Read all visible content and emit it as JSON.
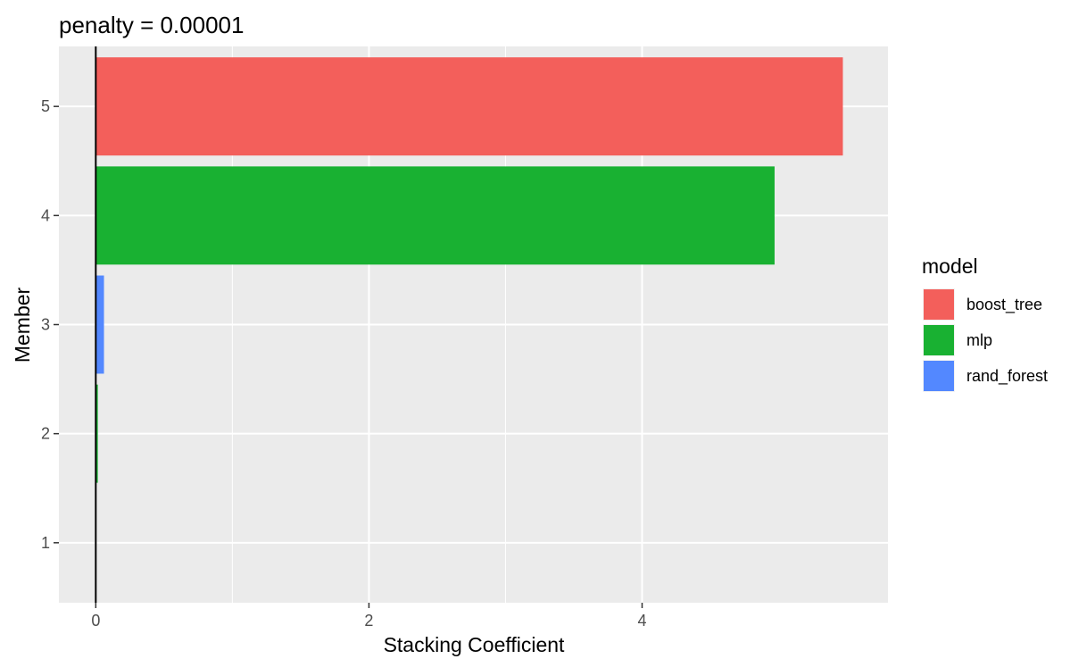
{
  "chart_data": {
    "type": "bar",
    "orientation": "horizontal",
    "title": "penalty = 0.00001",
    "xlabel": "Stacking Coefficient",
    "ylabel": "Member",
    "x_ticks": [
      "0",
      "2",
      "4"
    ],
    "y_ticks": [
      "1",
      "2",
      "3",
      "4",
      "5"
    ],
    "categories": [
      "1",
      "2",
      "3",
      "4",
      "5"
    ],
    "values": [
      0.0,
      0.015,
      0.06,
      4.97,
      5.47
    ],
    "bar_model": [
      "",
      "mlp",
      "rand_forest",
      "mlp",
      "boost_tree"
    ],
    "xlim": [
      -0.27,
      5.8
    ],
    "ylim": [
      0.45,
      5.55
    ],
    "legend": {
      "title": "model",
      "position": "right",
      "items": [
        {
          "label": "boost_tree",
          "color": "#F8766D"
        },
        {
          "label": "mlp",
          "color": "#00BA38"
        },
        {
          "label": "rand_forest",
          "color": "#619CFF"
        }
      ]
    },
    "colors": {
      "boost_tree": "#F35F5B",
      "mlp": "#19B132",
      "rand_forest": "#5388FF"
    },
    "grid": true,
    "zero_line": true
  }
}
